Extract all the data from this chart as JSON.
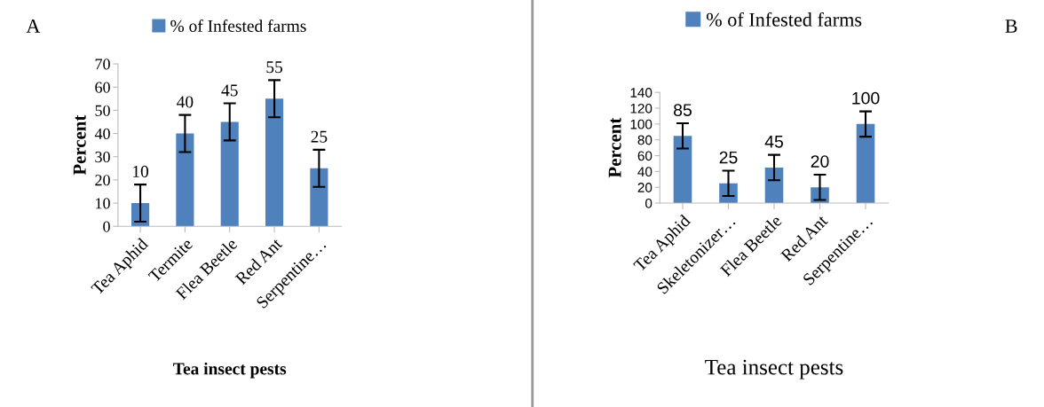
{
  "chart_data": [
    {
      "type": "bar",
      "categories": [
        "Tea Aphid",
        "Termite",
        "Flea Beetle",
        "Red Ant",
        "Serpentine…"
      ],
      "series": [
        {
          "name": "% of Infested farms",
          "color": "#4f81bd",
          "values": [
            10,
            40,
            45,
            55,
            25
          ],
          "errors": [
            8,
            8,
            8,
            8,
            8
          ]
        }
      ],
      "ylim": [
        0,
        70
      ],
      "yticks": [
        0,
        10,
        20,
        30,
        40,
        50,
        60,
        70
      ],
      "xlabel": "Tea insect pests",
      "ylabel": "Percent",
      "annotations": [
        "A"
      ],
      "data_labels": true,
      "legend": "top",
      "grid": false
    },
    {
      "type": "bar",
      "categories": [
        "Tea Aphid",
        "Skeletonizer…",
        "Flea Beetle",
        "Red Ant",
        "Serpentine…"
      ],
      "series": [
        {
          "name": "% of Infested farms",
          "color": "#4f81bd",
          "values": [
            85,
            25,
            45,
            20,
            100
          ],
          "errors": [
            16,
            16,
            16,
            16,
            16
          ]
        }
      ],
      "ylim": [
        0,
        140
      ],
      "yticks": [
        0,
        20,
        40,
        60,
        80,
        100,
        120,
        140
      ],
      "xlabel": "Tea insect pests",
      "ylabel": "Percent",
      "annotations": [
        "B"
      ],
      "data_labels": true,
      "legend": "top",
      "grid": false
    }
  ]
}
